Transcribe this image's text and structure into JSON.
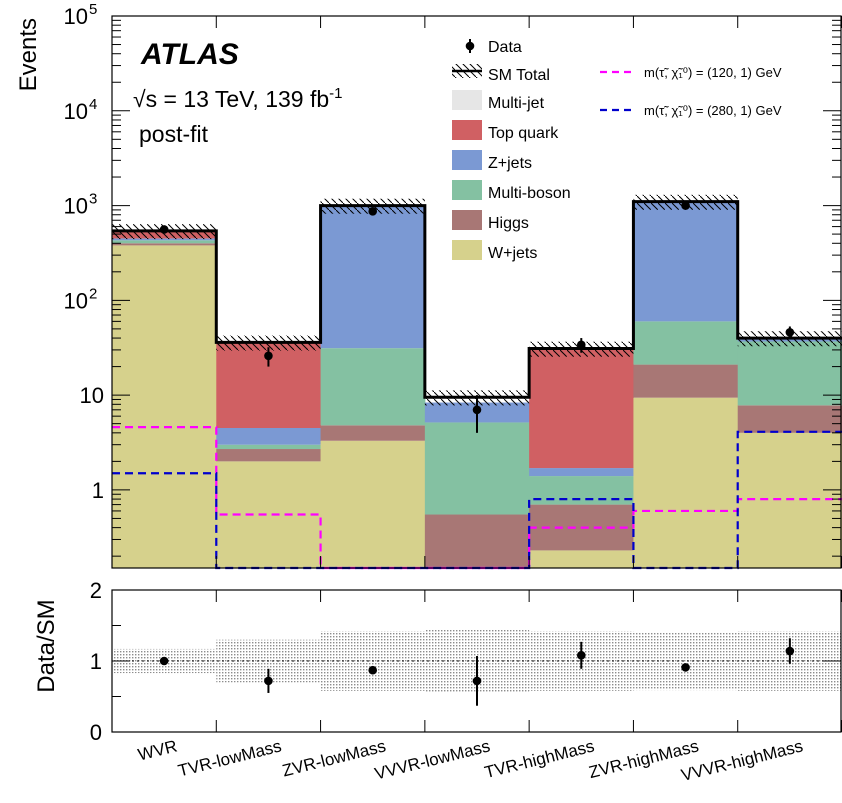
{
  "chart_data": {
    "type": "bar",
    "stacked": true,
    "log_y": true,
    "categories": [
      "WVR",
      "TVR-lowMass",
      "ZVR-lowMass",
      "VVVR-lowMass",
      "TVR-highMass",
      "ZVR-highMass",
      "VVVR-highMass"
    ],
    "ylabel": "Events",
    "ylim": [
      0.15,
      100000
    ],
    "y_ticks": [
      {
        "value": 1,
        "label": "1"
      },
      {
        "value": 10,
        "label": "10"
      },
      {
        "value": 100,
        "base": "10",
        "exp": "2"
      },
      {
        "value": 1000,
        "base": "10",
        "exp": "3"
      },
      {
        "value": 10000,
        "base": "10",
        "exp": "4"
      },
      {
        "value": 100000,
        "base": "10",
        "exp": "5"
      }
    ],
    "atlas": {
      "title": "ATLAS",
      "energy_prefix": "√s = 13 TeV, 139 fb",
      "energy_sup": "-1",
      "status": "post-fit"
    },
    "series": [
      {
        "name": "W+jets",
        "color": "#d6d18c",
        "values": [
          380,
          2.0,
          3.3,
          0.15,
          0.23,
          9.4,
          4.0
        ]
      },
      {
        "name": "Higgs",
        "color": "#a87775",
        "values": [
          20,
          0.7,
          1.5,
          0.4,
          0.47,
          11.6,
          3.8
        ]
      },
      {
        "name": "Multi-boson",
        "color": "#84c1a2",
        "values": [
          30,
          0.3,
          26.5,
          4.6,
          0.7,
          39,
          29
        ]
      },
      {
        "name": "Z+jets",
        "color": "#7b99d3",
        "values": [
          20,
          1.5,
          950,
          3.2,
          0.3,
          1020,
          2
        ]
      },
      {
        "name": "Top quark",
        "color": "#d06063",
        "values": [
          80,
          31,
          0,
          0,
          29.5,
          0,
          0
        ]
      },
      {
        "name": "Multi-jet",
        "color": "#e6e6e6",
        "values": [
          0,
          0,
          0,
          0,
          0,
          0,
          0
        ]
      }
    ],
    "sm_total": [
      540,
      36,
      1000,
      9.5,
      31,
      1100,
      40
    ],
    "sm_unc_rel": 0.18,
    "data_label": "Data",
    "sm_label": "SM Total",
    "data": [
      {
        "value": 560,
        "err": 24
      },
      {
        "value": 26,
        "err": 6
      },
      {
        "value": 870,
        "err": 30
      },
      {
        "value": 7,
        "err": 3
      },
      {
        "value": 34,
        "err": 6
      },
      {
        "value": 1000,
        "err": 32
      },
      {
        "value": 46,
        "err": 7
      }
    ],
    "signals": [
      {
        "name": "m(τ̃, χ̃₁⁰) = (120, 1) GeV",
        "color": "#ff00ff",
        "values": [
          4.6,
          0.55,
          0,
          0,
          0.4,
          0.6,
          0.8
        ]
      },
      {
        "name": "m(τ̃, χ̃₁⁰) = (280, 1) GeV",
        "color": "#0000cc",
        "values": [
          1.5,
          0,
          0,
          0,
          0.8,
          0,
          4.1
        ]
      }
    ],
    "ratio": {
      "ylabel": "Data/SM",
      "ylim": [
        0,
        2
      ],
      "ticks": [
        "0",
        "1",
        "2"
      ],
      "values": [
        1.0,
        0.72,
        0.87,
        0.72,
        1.08,
        0.91,
        1.14
      ],
      "errors": [
        0.04,
        0.17,
        0.03,
        0.35,
        0.19,
        0.03,
        0.18
      ],
      "band": [
        0.17,
        0.3,
        0.42,
        0.45,
        0.42,
        0.41,
        0.42
      ]
    },
    "grid": false,
    "legend_position": "top-right"
  }
}
